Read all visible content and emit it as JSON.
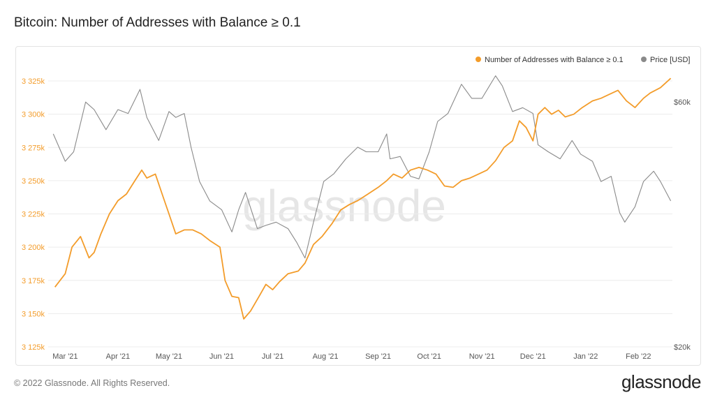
{
  "header": {
    "title": "Bitcoin: Number of Addresses with Balance ≥ 0.1"
  },
  "footer": {
    "copyright": "© 2022 Glassnode. All Rights Reserved.",
    "brand": "glassnode"
  },
  "watermark": "glassnode",
  "colors": {
    "addresses": "#f39c2a",
    "price": "#8a8a8a",
    "grid": "#ececec"
  },
  "chart_data": {
    "type": "line",
    "title": "Bitcoin: Number of Addresses with Balance ≥ 0.1",
    "legend": {
      "position": "top-right",
      "entries": [
        "Number of Addresses with Balance ≥ 0.1",
        "Price [USD]"
      ]
    },
    "x_ticks": [
      "Mar '21",
      "Apr '21",
      "May '21",
      "Jun '21",
      "Jul '21",
      "Aug '21",
      "Sep '21",
      "Oct '21",
      "Nov '21",
      "Dec '21",
      "Jan '22",
      "Feb '22"
    ],
    "y_left": {
      "ylim": [
        3125000,
        3335000
      ],
      "ticks": [
        3125000,
        3150000,
        3175000,
        3200000,
        3225000,
        3250000,
        3275000,
        3300000,
        3325000
      ],
      "tick_labels": [
        "3 125k",
        "3 150k",
        "3 175k",
        "3 200k",
        "3 225k",
        "3 250k",
        "3 275k",
        "3 300k",
        "3 325k"
      ]
    },
    "y_right": {
      "scale": "log",
      "ylim": [
        20000,
        70000
      ],
      "ticks": [
        20000,
        60000
      ],
      "tick_labels": [
        "$20k",
        "$60k"
      ]
    },
    "grid": true,
    "series": [
      {
        "name": "Number of Addresses with Balance ≥ 0.1",
        "axis": "left",
        "x": [
          "2021-02-23",
          "2021-03-01",
          "2021-03-05",
          "2021-03-10",
          "2021-03-15",
          "2021-03-18",
          "2021-03-22",
          "2021-03-27",
          "2021-04-01",
          "2021-04-06",
          "2021-04-11",
          "2021-04-15",
          "2021-04-18",
          "2021-04-23",
          "2021-04-27",
          "2021-05-01",
          "2021-05-05",
          "2021-05-10",
          "2021-05-15",
          "2021-05-20",
          "2021-05-25",
          "2021-05-31",
          "2021-06-03",
          "2021-06-07",
          "2021-06-11",
          "2021-06-14",
          "2021-06-18",
          "2021-06-23",
          "2021-06-27",
          "2021-07-01",
          "2021-07-05",
          "2021-07-10",
          "2021-07-16",
          "2021-07-20",
          "2021-07-25",
          "2021-07-30",
          "2021-08-05",
          "2021-08-10",
          "2021-08-15",
          "2021-08-20",
          "2021-08-26",
          "2021-09-01",
          "2021-09-06",
          "2021-09-10",
          "2021-09-15",
          "2021-09-20",
          "2021-09-25",
          "2021-09-30",
          "2021-10-05",
          "2021-10-10",
          "2021-10-15",
          "2021-10-20",
          "2021-10-25",
          "2021-10-30",
          "2021-11-04",
          "2021-11-09",
          "2021-11-14",
          "2021-11-19",
          "2021-11-23",
          "2021-11-27",
          "2021-12-01",
          "2021-12-04",
          "2021-12-08",
          "2021-12-12",
          "2021-12-16",
          "2021-12-20",
          "2021-12-25",
          "2021-12-30",
          "2022-01-05",
          "2022-01-10",
          "2022-01-15",
          "2022-01-20",
          "2022-01-25",
          "2022-01-30",
          "2022-02-04",
          "2022-02-08",
          "2022-02-14",
          "2022-02-20"
        ],
        "values": [
          3170000,
          3180000,
          3200000,
          3208000,
          3192000,
          3196000,
          3210000,
          3225000,
          3235000,
          3240000,
          3250000,
          3258000,
          3252000,
          3255000,
          3240000,
          3225000,
          3210000,
          3213000,
          3213000,
          3210000,
          3205000,
          3200000,
          3175000,
          3163000,
          3162000,
          3146000,
          3152000,
          3163000,
          3172000,
          3168000,
          3174000,
          3180000,
          3182000,
          3188000,
          3202000,
          3208000,
          3218000,
          3228000,
          3232000,
          3235000,
          3240000,
          3245000,
          3250000,
          3255000,
          3252000,
          3258000,
          3260000,
          3258000,
          3255000,
          3246000,
          3245000,
          3250000,
          3252000,
          3255000,
          3258000,
          3265000,
          3275000,
          3280000,
          3295000,
          3290000,
          3280000,
          3300000,
          3305000,
          3300000,
          3303000,
          3298000,
          3300000,
          3305000,
          3310000,
          3312000,
          3315000,
          3318000,
          3310000,
          3305000,
          3312000,
          3316000,
          3320000,
          3327000
        ]
      },
      {
        "name": "Price [USD]",
        "axis": "right",
        "x": [
          "2021-02-22",
          "2021-03-01",
          "2021-03-06",
          "2021-03-13",
          "2021-03-18",
          "2021-03-25",
          "2021-04-01",
          "2021-04-07",
          "2021-04-14",
          "2021-04-18",
          "2021-04-25",
          "2021-05-01",
          "2021-05-05",
          "2021-05-10",
          "2021-05-14",
          "2021-05-19",
          "2021-05-25",
          "2021-06-01",
          "2021-06-07",
          "2021-06-11",
          "2021-06-15",
          "2021-06-22",
          "2021-06-27",
          "2021-07-03",
          "2021-07-10",
          "2021-07-15",
          "2021-07-20",
          "2021-07-25",
          "2021-07-31",
          "2021-08-06",
          "2021-08-13",
          "2021-08-20",
          "2021-08-25",
          "2021-09-01",
          "2021-09-06",
          "2021-09-08",
          "2021-09-14",
          "2021-09-20",
          "2021-09-25",
          "2021-10-01",
          "2021-10-06",
          "2021-10-12",
          "2021-10-20",
          "2021-10-26",
          "2021-11-01",
          "2021-11-09",
          "2021-11-13",
          "2021-11-19",
          "2021-11-25",
          "2021-12-01",
          "2021-12-04",
          "2021-12-10",
          "2021-12-17",
          "2021-12-24",
          "2021-12-29",
          "2022-01-05",
          "2022-01-10",
          "2022-01-16",
          "2022-01-21",
          "2022-01-24",
          "2022-01-30",
          "2022-02-04",
          "2022-02-10",
          "2022-02-14",
          "2022-02-20"
        ],
        "values": [
          52000,
          46000,
          48000,
          60000,
          58000,
          53000,
          58000,
          57000,
          63500,
          56000,
          50500,
          57500,
          56000,
          57000,
          49000,
          42000,
          38500,
          37000,
          33500,
          37000,
          40000,
          34000,
          34500,
          35000,
          34000,
          32000,
          29800,
          35000,
          42000,
          43500,
          46500,
          49000,
          48000,
          48000,
          52000,
          46500,
          47000,
          43000,
          42500,
          48000,
          55000,
          57000,
          65000,
          61000,
          61000,
          67500,
          64500,
          57500,
          58500,
          57000,
          49500,
          48000,
          46500,
          50500,
          47500,
          46000,
          42000,
          43000,
          36500,
          35000,
          37500,
          42000,
          44000,
          42000,
          38500
        ]
      }
    ]
  }
}
